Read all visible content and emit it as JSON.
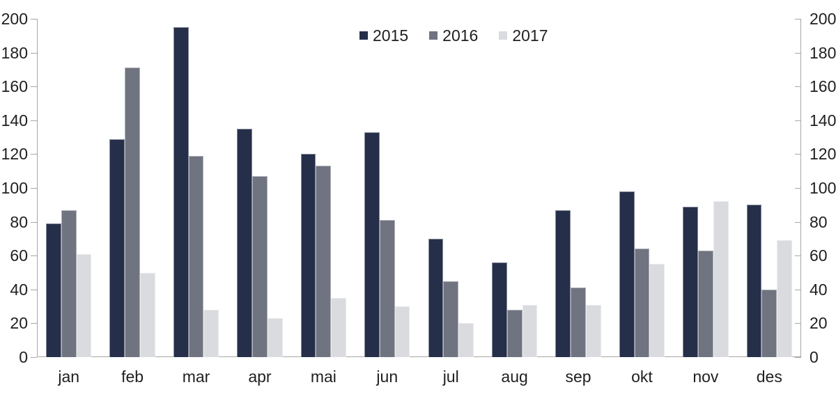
{
  "chart_data": {
    "type": "bar",
    "title": "",
    "xlabel": "",
    "ylabel": "",
    "categories": [
      "jan",
      "feb",
      "mar",
      "apr",
      "mai",
      "jun",
      "jul",
      "aug",
      "sep",
      "okt",
      "nov",
      "des"
    ],
    "series": [
      {
        "name": "2015",
        "color": "#252f49",
        "values": [
          79,
          129,
          195,
          135,
          120,
          133,
          70,
          56,
          87,
          98,
          89,
          90
        ]
      },
      {
        "name": "2016",
        "color": "#6f7480",
        "values": [
          87,
          171,
          119,
          107,
          113,
          81,
          45,
          28,
          41,
          64,
          63,
          40
        ]
      },
      {
        "name": "2017",
        "color": "#d9dbdf",
        "values": [
          61,
          50,
          28,
          23,
          35,
          30,
          20,
          31,
          31,
          55,
          92,
          69
        ]
      }
    ],
    "ylim": [
      0,
      200
    ],
    "yticks": [
      0,
      20,
      40,
      60,
      80,
      100,
      120,
      140,
      160,
      180,
      200
    ],
    "y_axis_sides": "both",
    "grid": "off",
    "legend_position": "top-center",
    "axis_color": "#a6a6a6",
    "text_color": "#1f1f1f",
    "background_color": "#ffffff"
  },
  "layout_note": "grouped vertical bars, dual value axes, no gridlines"
}
